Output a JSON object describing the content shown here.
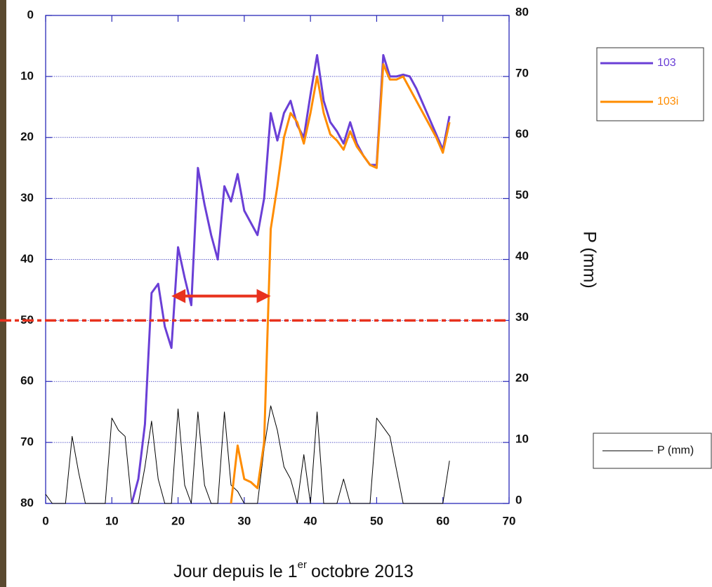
{
  "chart_data": {
    "type": "line",
    "xlabel": {
      "text": "Jour depuis le 1",
      "sup": "er",
      "rest": "octobre 2013"
    },
    "y2label": "P (mm)",
    "x": [
      0,
      1,
      2,
      3,
      4,
      5,
      6,
      7,
      8,
      9,
      10,
      11,
      12,
      13,
      14,
      15,
      16,
      17,
      18,
      19,
      20,
      21,
      22,
      23,
      24,
      25,
      26,
      27,
      28,
      29,
      30,
      31,
      32,
      33,
      34,
      35,
      36,
      37,
      38,
      39,
      40,
      41,
      42,
      43,
      44,
      45,
      46,
      47,
      48,
      49,
      50,
      51,
      52,
      53,
      54,
      55,
      56,
      57,
      58,
      59,
      60,
      61
    ],
    "series": [
      {
        "name": "103",
        "color": "#6a3fd6",
        "values": [
          null,
          null,
          null,
          null,
          null,
          null,
          null,
          null,
          null,
          null,
          null,
          null,
          null,
          80,
          76,
          67,
          45.5,
          44,
          51,
          54.5,
          38,
          43,
          47.5,
          25,
          31,
          36,
          40,
          28,
          30.5,
          26,
          32,
          34,
          36,
          30,
          16,
          20.5,
          16,
          14,
          18,
          20,
          13,
          6.5,
          14,
          17.5,
          19,
          21,
          17.5,
          21,
          23,
          24.5,
          24.5,
          6.5,
          10,
          10,
          9.7,
          10,
          12,
          14.5,
          17,
          19.5,
          22,
          16.5
        ]
      },
      {
        "name": "103i",
        "color": "#ff8c00",
        "values": [
          null,
          null,
          null,
          null,
          null,
          null,
          null,
          null,
          null,
          null,
          null,
          null,
          null,
          null,
          null,
          null,
          null,
          null,
          null,
          null,
          null,
          null,
          null,
          null,
          null,
          null,
          null,
          null,
          80,
          70.5,
          76,
          76.5,
          77.5,
          70,
          35,
          28,
          20,
          16,
          17.5,
          21,
          16,
          10,
          16,
          19.5,
          20.5,
          22,
          19,
          21.5,
          23,
          24.5,
          25,
          8,
          10.5,
          10.5,
          10,
          12,
          14,
          16,
          18,
          20,
          22.5,
          17.5
        ]
      },
      {
        "name": "P (mm)",
        "color": "#000000",
        "axis": "y2",
        "values": [
          1.5,
          0,
          0,
          0,
          11,
          5,
          0,
          0,
          0,
          0,
          14,
          12,
          11,
          0,
          0,
          6,
          13.5,
          4,
          0,
          0,
          15.5,
          3,
          0,
          15,
          3,
          0,
          0,
          15,
          3,
          2,
          0,
          0,
          0,
          9,
          16,
          12,
          6,
          4,
          0,
          8,
          0,
          15,
          0,
          0,
          0,
          4,
          0,
          0,
          0,
          0,
          14,
          12.5,
          11,
          5.5,
          0,
          0,
          0,
          0,
          0,
          0,
          0,
          7
        ]
      }
    ],
    "xlim": [
      0,
      70
    ],
    "xticks": [
      0,
      10,
      20,
      30,
      40,
      50,
      60,
      70
    ],
    "ylim": [
      0,
      80
    ],
    "yinverted": true,
    "yticks": [
      0,
      10,
      20,
      30,
      40,
      50,
      60,
      70,
      80
    ],
    "y2lim": [
      0,
      80
    ],
    "y2ticks": [
      0,
      10,
      20,
      30,
      40,
      50,
      60,
      70,
      80
    ],
    "grid": true,
    "threshold": {
      "y": 50,
      "color": "#e8321e"
    },
    "arrow": {
      "x": [
        19,
        34
      ],
      "y": 46,
      "color": "#e8321e"
    }
  }
}
